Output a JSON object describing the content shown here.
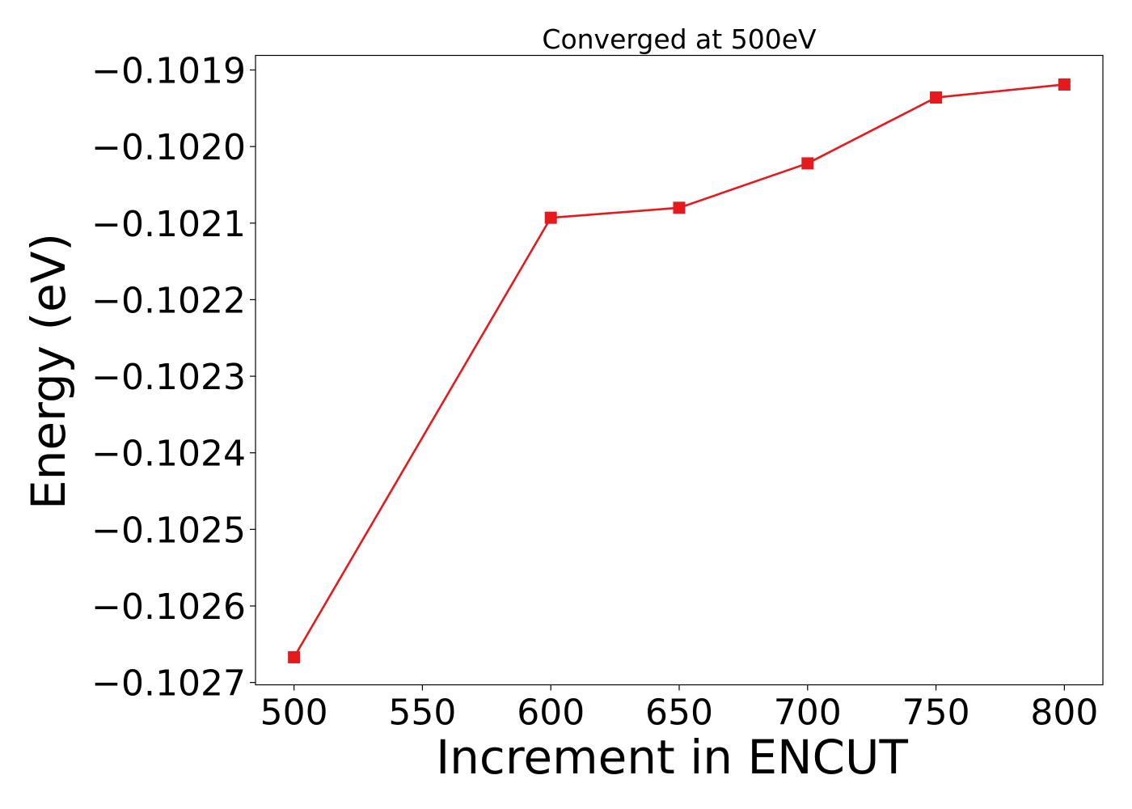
{
  "chart_data": {
    "type": "line",
    "title": "Converged at 500eV",
    "xlabel": "Increment in ENCUT",
    "ylabel": "Energy (eV)",
    "x": [
      500,
      600,
      650,
      700,
      750,
      800
    ],
    "series": [
      {
        "color": "#e41a1c",
        "marker": "square",
        "values": [
          -0.102667,
          -0.102093,
          -0.10208,
          -0.102022,
          -0.101936,
          -0.101919
        ]
      }
    ],
    "x_ticks": [
      500,
      550,
      600,
      650,
      700,
      750,
      800
    ],
    "x_tick_labels": [
      "500",
      "550",
      "600",
      "650",
      "700",
      "750",
      "800"
    ],
    "y_ticks": [
      -0.1019,
      -0.102,
      -0.1021,
      -0.1022,
      -0.1023,
      -0.1024,
      -0.1025,
      -0.1026,
      -0.1027
    ],
    "y_tick_labels": [
      "−0.1019",
      "−0.1020",
      "−0.1021",
      "−0.1022",
      "−0.1023",
      "−0.1024",
      "−0.1025",
      "−0.1026",
      "−0.1027"
    ],
    "xlim": [
      485,
      815
    ],
    "ylim": [
      -0.102703,
      -0.101881
    ],
    "grid": false,
    "legend": "none"
  }
}
